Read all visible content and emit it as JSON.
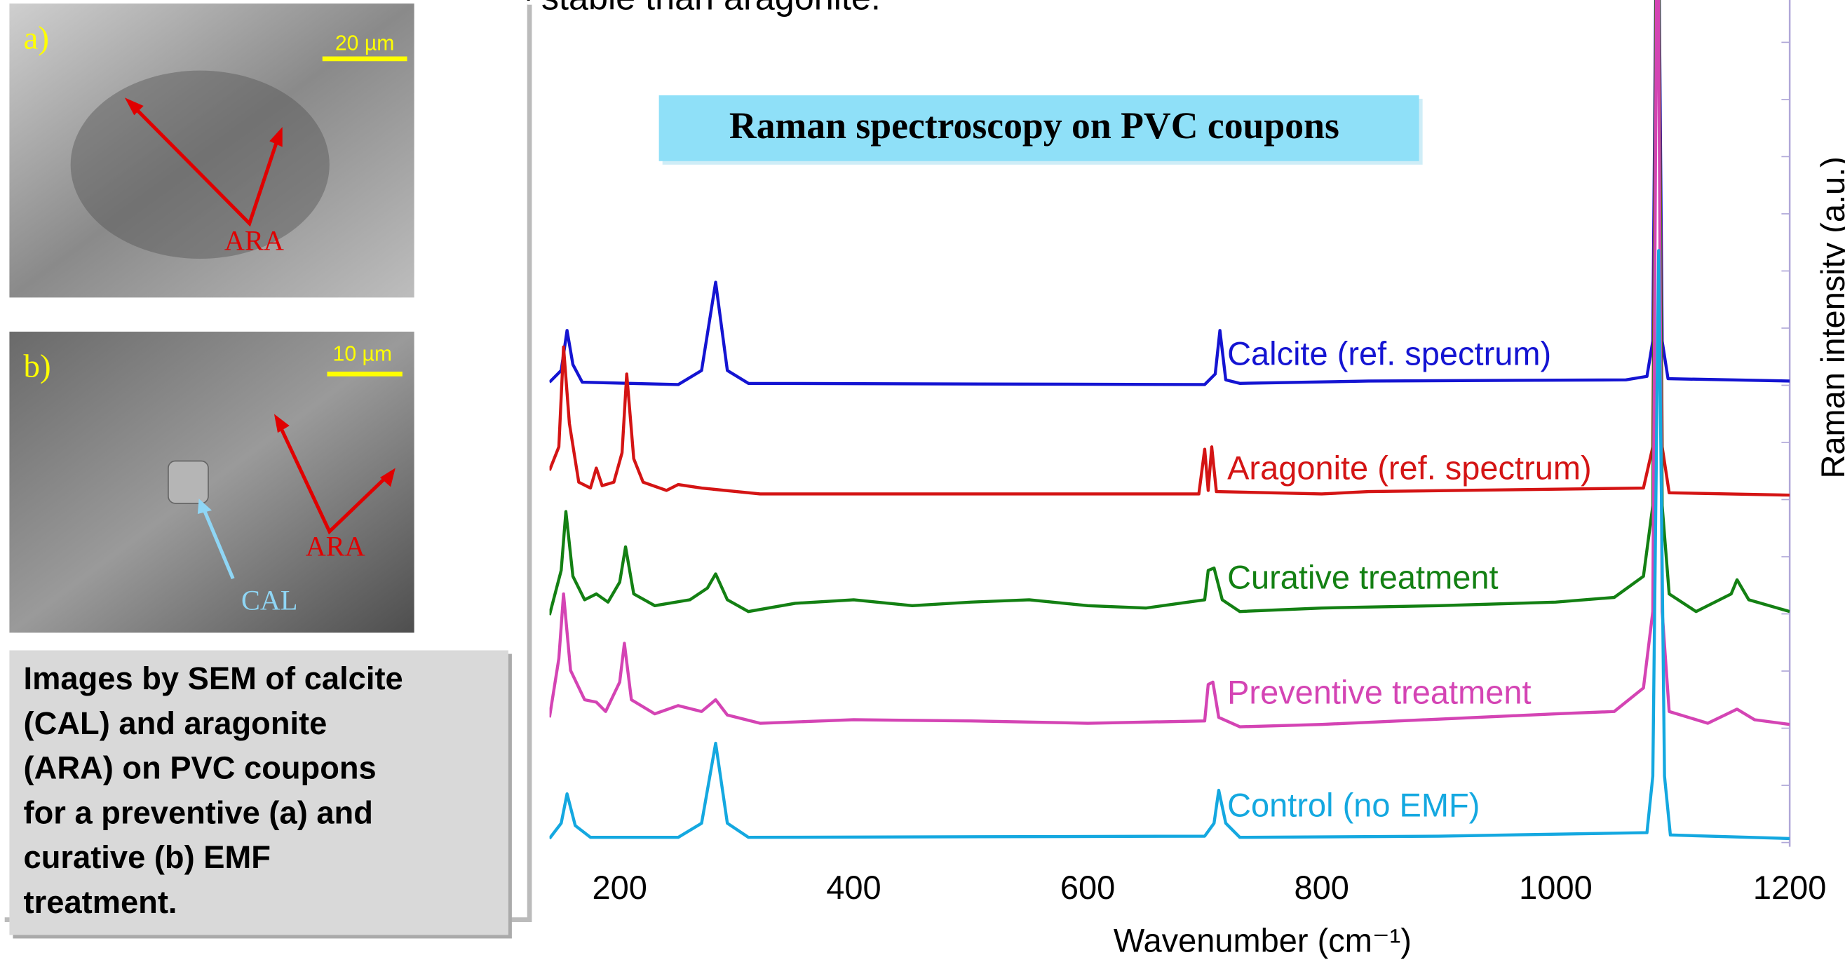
{
  "header": {
    "title": "re stable than aragonite."
  },
  "sem_images": [
    {
      "panel": "a)",
      "scale": "20 µm",
      "labels": [
        "ARA"
      ]
    },
    {
      "panel": "b)",
      "scale": "10 µm",
      "labels": [
        "ARA",
        "CAL"
      ]
    }
  ],
  "caption": [
    "Images by SEM of calcite",
    "(CAL) and aragonite",
    "(ARA) on PVC coupons",
    "for a preventive (a) and",
    "curative (b) EMF",
    "treatment."
  ],
  "chart_data": {
    "type": "line",
    "title": "Raman spectroscopy on PVC coupons",
    "x_label": "Wavenumber (cm⁻¹)",
    "y_label": "Raman intensity (a.u.)",
    "xlim": [
      140,
      1200
    ],
    "ylim": [
      0,
      720
    ],
    "xticks": [
      200,
      400,
      600,
      800,
      1000,
      1200
    ],
    "series": [
      {
        "name": "Calcite (ref. spectrum)",
        "color": "#1414d2",
        "x": [
          140,
          150,
          155,
          160,
          168,
          250,
          270,
          282,
          292,
          310,
          700,
          709,
          713,
          718,
          730,
          840,
          1060,
          1078,
          1083,
          1087,
          1091,
          1096,
          1200
        ],
        "values": [
          395,
          405,
          439,
          410,
          395,
          393,
          405,
          480,
          405,
          394,
          393,
          402,
          439,
          397,
          394,
          396,
          397,
          400,
          430,
          900,
          430,
          398,
          396
        ]
      },
      {
        "name": "Aragonite (ref. spectrum)",
        "color": "#d41414",
        "x": [
          140,
          148,
          152,
          157,
          165,
          175,
          180,
          185,
          195,
          202,
          206,
          212,
          220,
          240,
          250,
          270,
          290,
          320,
          695,
          700,
          703,
          706,
          710,
          800,
          840,
          1075,
          1083,
          1087,
          1091,
          1097,
          1200
        ],
        "values": [
          320,
          340,
          425,
          360,
          310,
          305,
          322,
          307,
          310,
          335,
          402,
          330,
          310,
          303,
          308,
          305,
          303,
          300,
          300,
          338,
          303,
          340,
          302,
          300,
          302,
          305,
          340,
          900,
          340,
          301,
          299
        ]
      },
      {
        "name": "Curative treatment",
        "color": "#138013",
        "x": [
          140,
          150,
          154,
          160,
          170,
          180,
          190,
          200,
          205,
          212,
          230,
          260,
          275,
          282,
          292,
          310,
          350,
          400,
          450,
          500,
          550,
          600,
          650,
          700,
          703,
          708,
          715,
          730,
          800,
          900,
          1000,
          1050,
          1075,
          1083,
          1087,
          1091,
          1097,
          1120,
          1150,
          1155,
          1165,
          1200
        ],
        "values": [
          197,
          235,
          285,
          230,
          210,
          215,
          208,
          225,
          255,
          215,
          205,
          210,
          220,
          232,
          210,
          200,
          207,
          210,
          205,
          208,
          210,
          205,
          203,
          210,
          235,
          237,
          210,
          200,
          203,
          205,
          208,
          212,
          230,
          290,
          900,
          290,
          215,
          200,
          215,
          227,
          210,
          200
        ]
      },
      {
        "name": "Preventive treatment",
        "color": "#d444b4",
        "x": [
          140,
          148,
          152,
          158,
          170,
          180,
          188,
          200,
          204,
          210,
          230,
          250,
          270,
          282,
          292,
          320,
          400,
          500,
          600,
          700,
          703,
          707,
          712,
          730,
          800,
          1000,
          1050,
          1075,
          1083,
          1087,
          1091,
          1097,
          1130,
          1155,
          1170,
          1200
        ],
        "values": [
          110,
          160,
          215,
          150,
          125,
          123,
          115,
          140,
          173,
          125,
          113,
          120,
          115,
          125,
          112,
          105,
          108,
          107,
          105,
          107,
          138,
          140,
          110,
          102,
          104,
          113,
          115,
          135,
          200,
          860,
          200,
          115,
          105,
          117,
          108,
          104
        ]
      },
      {
        "name": "Control (no EMF)",
        "color": "#14a8e0",
        "x": [
          140,
          150,
          155,
          162,
          175,
          250,
          270,
          282,
          292,
          310,
          700,
          708,
          712,
          718,
          730,
          900,
          1078,
          1083,
          1088,
          1093,
          1098,
          1200
        ],
        "values": [
          7,
          20,
          45,
          18,
          8,
          8,
          20,
          88,
          20,
          8,
          9,
          20,
          48,
          20,
          8,
          9,
          12,
          60,
          507,
          60,
          10,
          7
        ]
      }
    ]
  }
}
